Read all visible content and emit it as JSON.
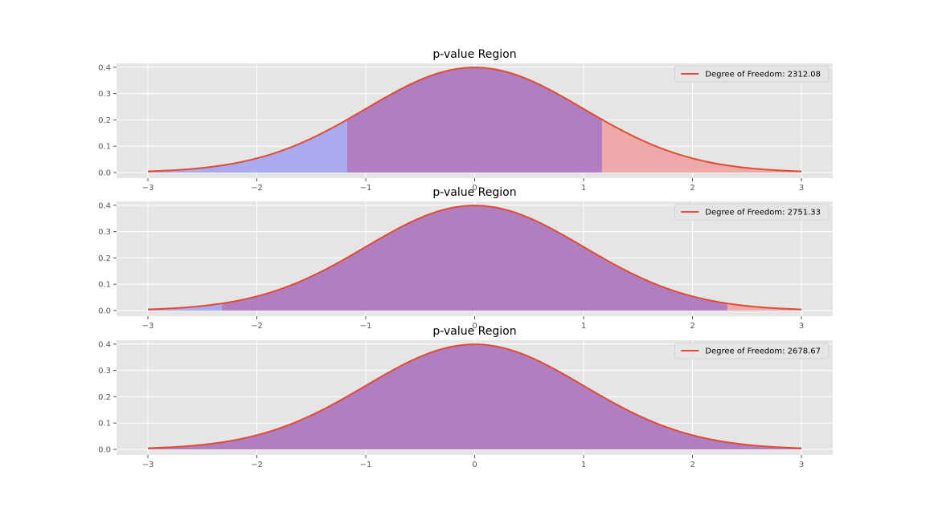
{
  "colors": {
    "panel_background": "#e5e5e5",
    "grid": "#ffffff",
    "curve": "#e24a33",
    "left_fill": "#aaaaee",
    "right_fill": "#eeaaaa",
    "middle_fill": "#b07fc1"
  },
  "chart_data": [
    {
      "type": "area",
      "title": "p-value Region",
      "curve": "standard normal pdf",
      "xlim": [
        -3,
        3
      ],
      "ylim": [
        0,
        0.4
      ],
      "x_ticks": [
        "−3",
        "−2",
        "−1",
        "0",
        "1",
        "2",
        "3"
      ],
      "y_ticks": [
        "0.0",
        "0.1",
        "0.2",
        "0.3",
        "0.4"
      ],
      "series": [
        {
          "name": "Degree of Freedom: 2312.08"
        }
      ],
      "left_critical": -1.17,
      "right_critical": 1.17,
      "legend_position": "upper-right",
      "grid": true
    },
    {
      "type": "area",
      "title": "p-value Region",
      "curve": "standard normal pdf",
      "xlim": [
        -3,
        3
      ],
      "ylim": [
        0,
        0.4
      ],
      "x_ticks": [
        "−3",
        "−2",
        "−1",
        "0",
        "1",
        "2",
        "3"
      ],
      "y_ticks": [
        "0.0",
        "0.1",
        "0.2",
        "0.3",
        "0.4"
      ],
      "series": [
        {
          "name": "Degree of Freedom: 2751.33"
        }
      ],
      "left_critical": -2.32,
      "right_critical": 2.32,
      "legend_position": "upper-right",
      "grid": true
    },
    {
      "type": "area",
      "title": "p-value Region",
      "curve": "standard normal pdf",
      "xlim": [
        -3,
        3
      ],
      "ylim": [
        0,
        0.4
      ],
      "x_ticks": [
        "−3",
        "−2",
        "−1",
        "0",
        "1",
        "2",
        "3"
      ],
      "y_ticks": [
        "0.0",
        "0.1",
        "0.2",
        "0.3",
        "0.4"
      ],
      "series": [
        {
          "name": "Degree of Freedom: 2678.67"
        }
      ],
      "left_critical": -3.0,
      "right_critical": 3.0,
      "legend_position": "upper-right",
      "grid": true
    }
  ]
}
